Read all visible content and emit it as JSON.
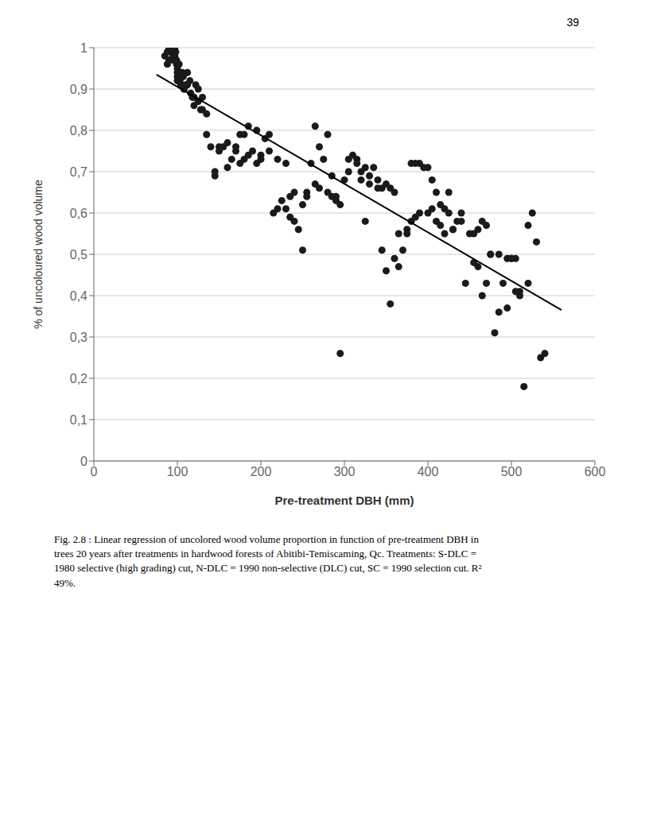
{
  "chart_data": {
    "type": "scatter",
    "xlabel": "Pre-treatment DBH (mm)",
    "ylabel": "% of uncoloured wood volume",
    "annotations": [
      "Fig. 2.8 : Linear regression of uncolored wood volume proportion in function of pre-treatment DBH in\ntrees 20 years after treatments in hardwood forests of Abitibi-Temiscaming, Qc. Treatments: S-DLC =\n1980 selective (high grading) cut, N-DLC = 1990 non-selective (DLC) cut, SC = 1990 selection cut. R²\n49%.",
      "39"
    ],
    "xlim": [
      0,
      600
    ],
    "ylim": [
      0,
      1.0
    ],
    "xticks": [
      0,
      100,
      200,
      300,
      400,
      500,
      600
    ],
    "yticks": [
      0,
      {
        "value": 0.1,
        "label": "0,1"
      },
      {
        "value": 0.2,
        "label": "0,2"
      },
      {
        "value": 0.3,
        "label": "0,3"
      },
      {
        "value": 0.4,
        "label": "0,4"
      },
      {
        "value": 0.5,
        "label": "0,5"
      },
      {
        "value": 0.6,
        "label": "0,6"
      },
      {
        "value": 0.7,
        "label": "0,7"
      },
      {
        "value": 0.8,
        "label": "0,8"
      },
      {
        "value": 0.9,
        "label": "0,9"
      },
      1
    ],
    "grid": "y",
    "series": [
      {
        "type": "scatter",
        "color": "#1a1a1a",
        "x": [
          85,
          88,
          90,
          92,
          93,
          95,
          96,
          97,
          98,
          99,
          100,
          100,
          101,
          102,
          103,
          105,
          107,
          108,
          110,
          112,
          115,
          118,
          120,
          122,
          125,
          128,
          130,
          135,
          140,
          145,
          150,
          155,
          160,
          165,
          170,
          175,
          180,
          185,
          190,
          195,
          200,
          205,
          210,
          215,
          220,
          225,
          230,
          235,
          240,
          245,
          250,
          255,
          260,
          265,
          270,
          275,
          280,
          285,
          290,
          295,
          300,
          305,
          310,
          315,
          320,
          325,
          330,
          335,
          340,
          345,
          350,
          355,
          360,
          365,
          370,
          375,
          380,
          385,
          390,
          395,
          400,
          405,
          410,
          415,
          420,
          425,
          430,
          435,
          440,
          445,
          450,
          455,
          460,
          465,
          470,
          475,
          480,
          485,
          490,
          495,
          500,
          505,
          510,
          515,
          520,
          525,
          530,
          535,
          540,
          88,
          90,
          92,
          94,
          96,
          97,
          98,
          99,
          100,
          100,
          102,
          104,
          106,
          108,
          112,
          116,
          120,
          125,
          130,
          135,
          145,
          150,
          160,
          170,
          175,
          180,
          185,
          195,
          200,
          210,
          220,
          230,
          235,
          240,
          250,
          255,
          265,
          270,
          280,
          285,
          290,
          295,
          305,
          315,
          320,
          325,
          330,
          340,
          345,
          350,
          355,
          360,
          365,
          375,
          380,
          385,
          390,
          400,
          405,
          410,
          415,
          420,
          425,
          430,
          440,
          455,
          460,
          465,
          470,
          475,
          485,
          495,
          500,
          505,
          510,
          520
        ],
        "values": [
          0.98,
          0.99,
          1.0,
          1.0,
          0.99,
          0.98,
          1.0,
          1.0,
          0.99,
          0.97,
          0.95,
          0.93,
          0.94,
          0.96,
          0.92,
          0.91,
          0.93,
          0.9,
          0.91,
          0.94,
          0.92,
          0.88,
          0.86,
          0.91,
          0.9,
          0.85,
          0.88,
          0.79,
          0.76,
          0.7,
          0.76,
          0.76,
          0.71,
          0.73,
          0.75,
          0.79,
          0.79,
          0.81,
          0.75,
          0.8,
          0.73,
          0.78,
          0.79,
          0.6,
          0.61,
          0.63,
          0.61,
          0.59,
          0.58,
          0.56,
          0.51,
          0.65,
          0.72,
          0.81,
          0.76,
          0.73,
          0.79,
          0.69,
          0.64,
          0.26,
          0.68,
          0.73,
          0.74,
          0.73,
          0.68,
          0.58,
          0.67,
          0.71,
          0.66,
          0.51,
          0.46,
          0.38,
          0.49,
          0.47,
          0.51,
          0.55,
          0.72,
          0.72,
          0.72,
          0.71,
          0.71,
          0.68,
          0.65,
          0.62,
          0.61,
          0.65,
          0.56,
          0.58,
          0.6,
          0.43,
          0.55,
          0.48,
          0.47,
          0.4,
          0.43,
          0.5,
          0.31,
          0.36,
          0.43,
          0.37,
          0.49,
          0.41,
          0.4,
          0.18,
          0.57,
          0.6,
          0.53,
          0.25,
          0.26,
          0.96,
          0.97,
          0.99,
          0.97,
          1.0,
          0.98,
          0.97,
          0.96,
          0.94,
          0.92,
          0.93,
          0.91,
          0.94,
          0.9,
          0.91,
          0.89,
          0.88,
          0.87,
          0.85,
          0.84,
          0.69,
          0.75,
          0.77,
          0.76,
          0.72,
          0.73,
          0.74,
          0.72,
          0.74,
          0.75,
          0.73,
          0.72,
          0.64,
          0.65,
          0.62,
          0.64,
          0.67,
          0.66,
          0.65,
          0.64,
          0.63,
          0.62,
          0.7,
          0.72,
          0.7,
          0.71,
          0.69,
          0.68,
          0.66,
          0.67,
          0.66,
          0.65,
          0.55,
          0.56,
          0.58,
          0.59,
          0.6,
          0.6,
          0.61,
          0.58,
          0.57,
          0.55,
          0.6,
          0.56,
          0.58,
          0.55,
          0.56,
          0.58,
          0.57,
          0.5,
          0.5,
          0.49,
          0.49,
          0.49,
          0.41,
          0.43
        ]
      },
      {
        "type": "line",
        "color": "#000000",
        "x": [
          75,
          560
        ],
        "values": [
          0.935,
          0.365
        ]
      }
    ]
  }
}
